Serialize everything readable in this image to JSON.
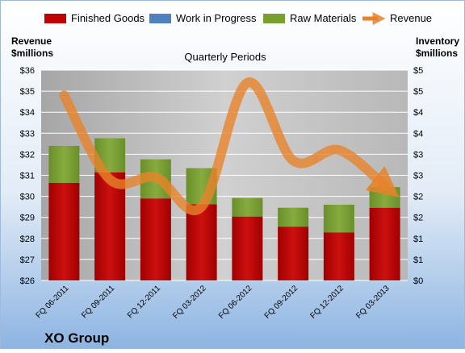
{
  "company": "XO Group",
  "chart_data": {
    "type": "bar",
    "subtitle": "Quarterly Periods",
    "categories": [
      "FQ 06-2011",
      "FQ 09-2011",
      "FQ 12-2011",
      "FQ 03-2012",
      "FQ 06-2012",
      "FQ 09-2012",
      "FQ 12-2012",
      "FQ 03-2013"
    ],
    "left_axis": {
      "label_line1": "Revenue",
      "label_line2": "$millions",
      "min": 26,
      "max": 36,
      "step": 1,
      "prefix": "$",
      "tick_labels": [
        "$26",
        "$27",
        "$28",
        "$29",
        "$30",
        "$31",
        "$32",
        "$33",
        "$34",
        "$35",
        "$36"
      ]
    },
    "right_axis": {
      "label_line1": "Inventory",
      "label_line2": "$millions",
      "min": 0,
      "max": 5,
      "step": 0.5,
      "tick_labels": [
        "$0",
        "$1",
        "$1",
        "$2",
        "$2",
        "$3",
        "$3",
        "$4",
        "$4",
        "$5",
        "$5"
      ]
    },
    "series": [
      {
        "name": "Finished Goods",
        "axis": "right",
        "kind": "stacked-bar",
        "color": "#C00000",
        "values": [
          2.32,
          2.57,
          1.95,
          1.81,
          1.52,
          1.28,
          1.14,
          1.73
        ]
      },
      {
        "name": "Work in Progress",
        "axis": "right",
        "kind": "stacked-bar",
        "color": "#4F81BD",
        "values": [
          0,
          0,
          0,
          0,
          0,
          0,
          0,
          0
        ]
      },
      {
        "name": "Raw Materials",
        "axis": "right",
        "kind": "stacked-bar",
        "color": "#77A02F",
        "values": [
          0.88,
          0.81,
          0.93,
          0.86,
          0.44,
          0.45,
          0.66,
          0.49
        ]
      },
      {
        "name": "Revenue",
        "axis": "left",
        "kind": "line",
        "color": "#E8832A",
        "values": [
          34.8,
          30.8,
          30.9,
          29.5,
          35.4,
          31.7,
          32.2,
          30.5
        ]
      }
    ],
    "legend_position": "top",
    "grid": true
  },
  "colors": {
    "background_top": "#FFFFFF",
    "background_bottom": "#8DB4E2",
    "plot_area": "#BFBFBF",
    "gridline": "#FFFFFF"
  }
}
